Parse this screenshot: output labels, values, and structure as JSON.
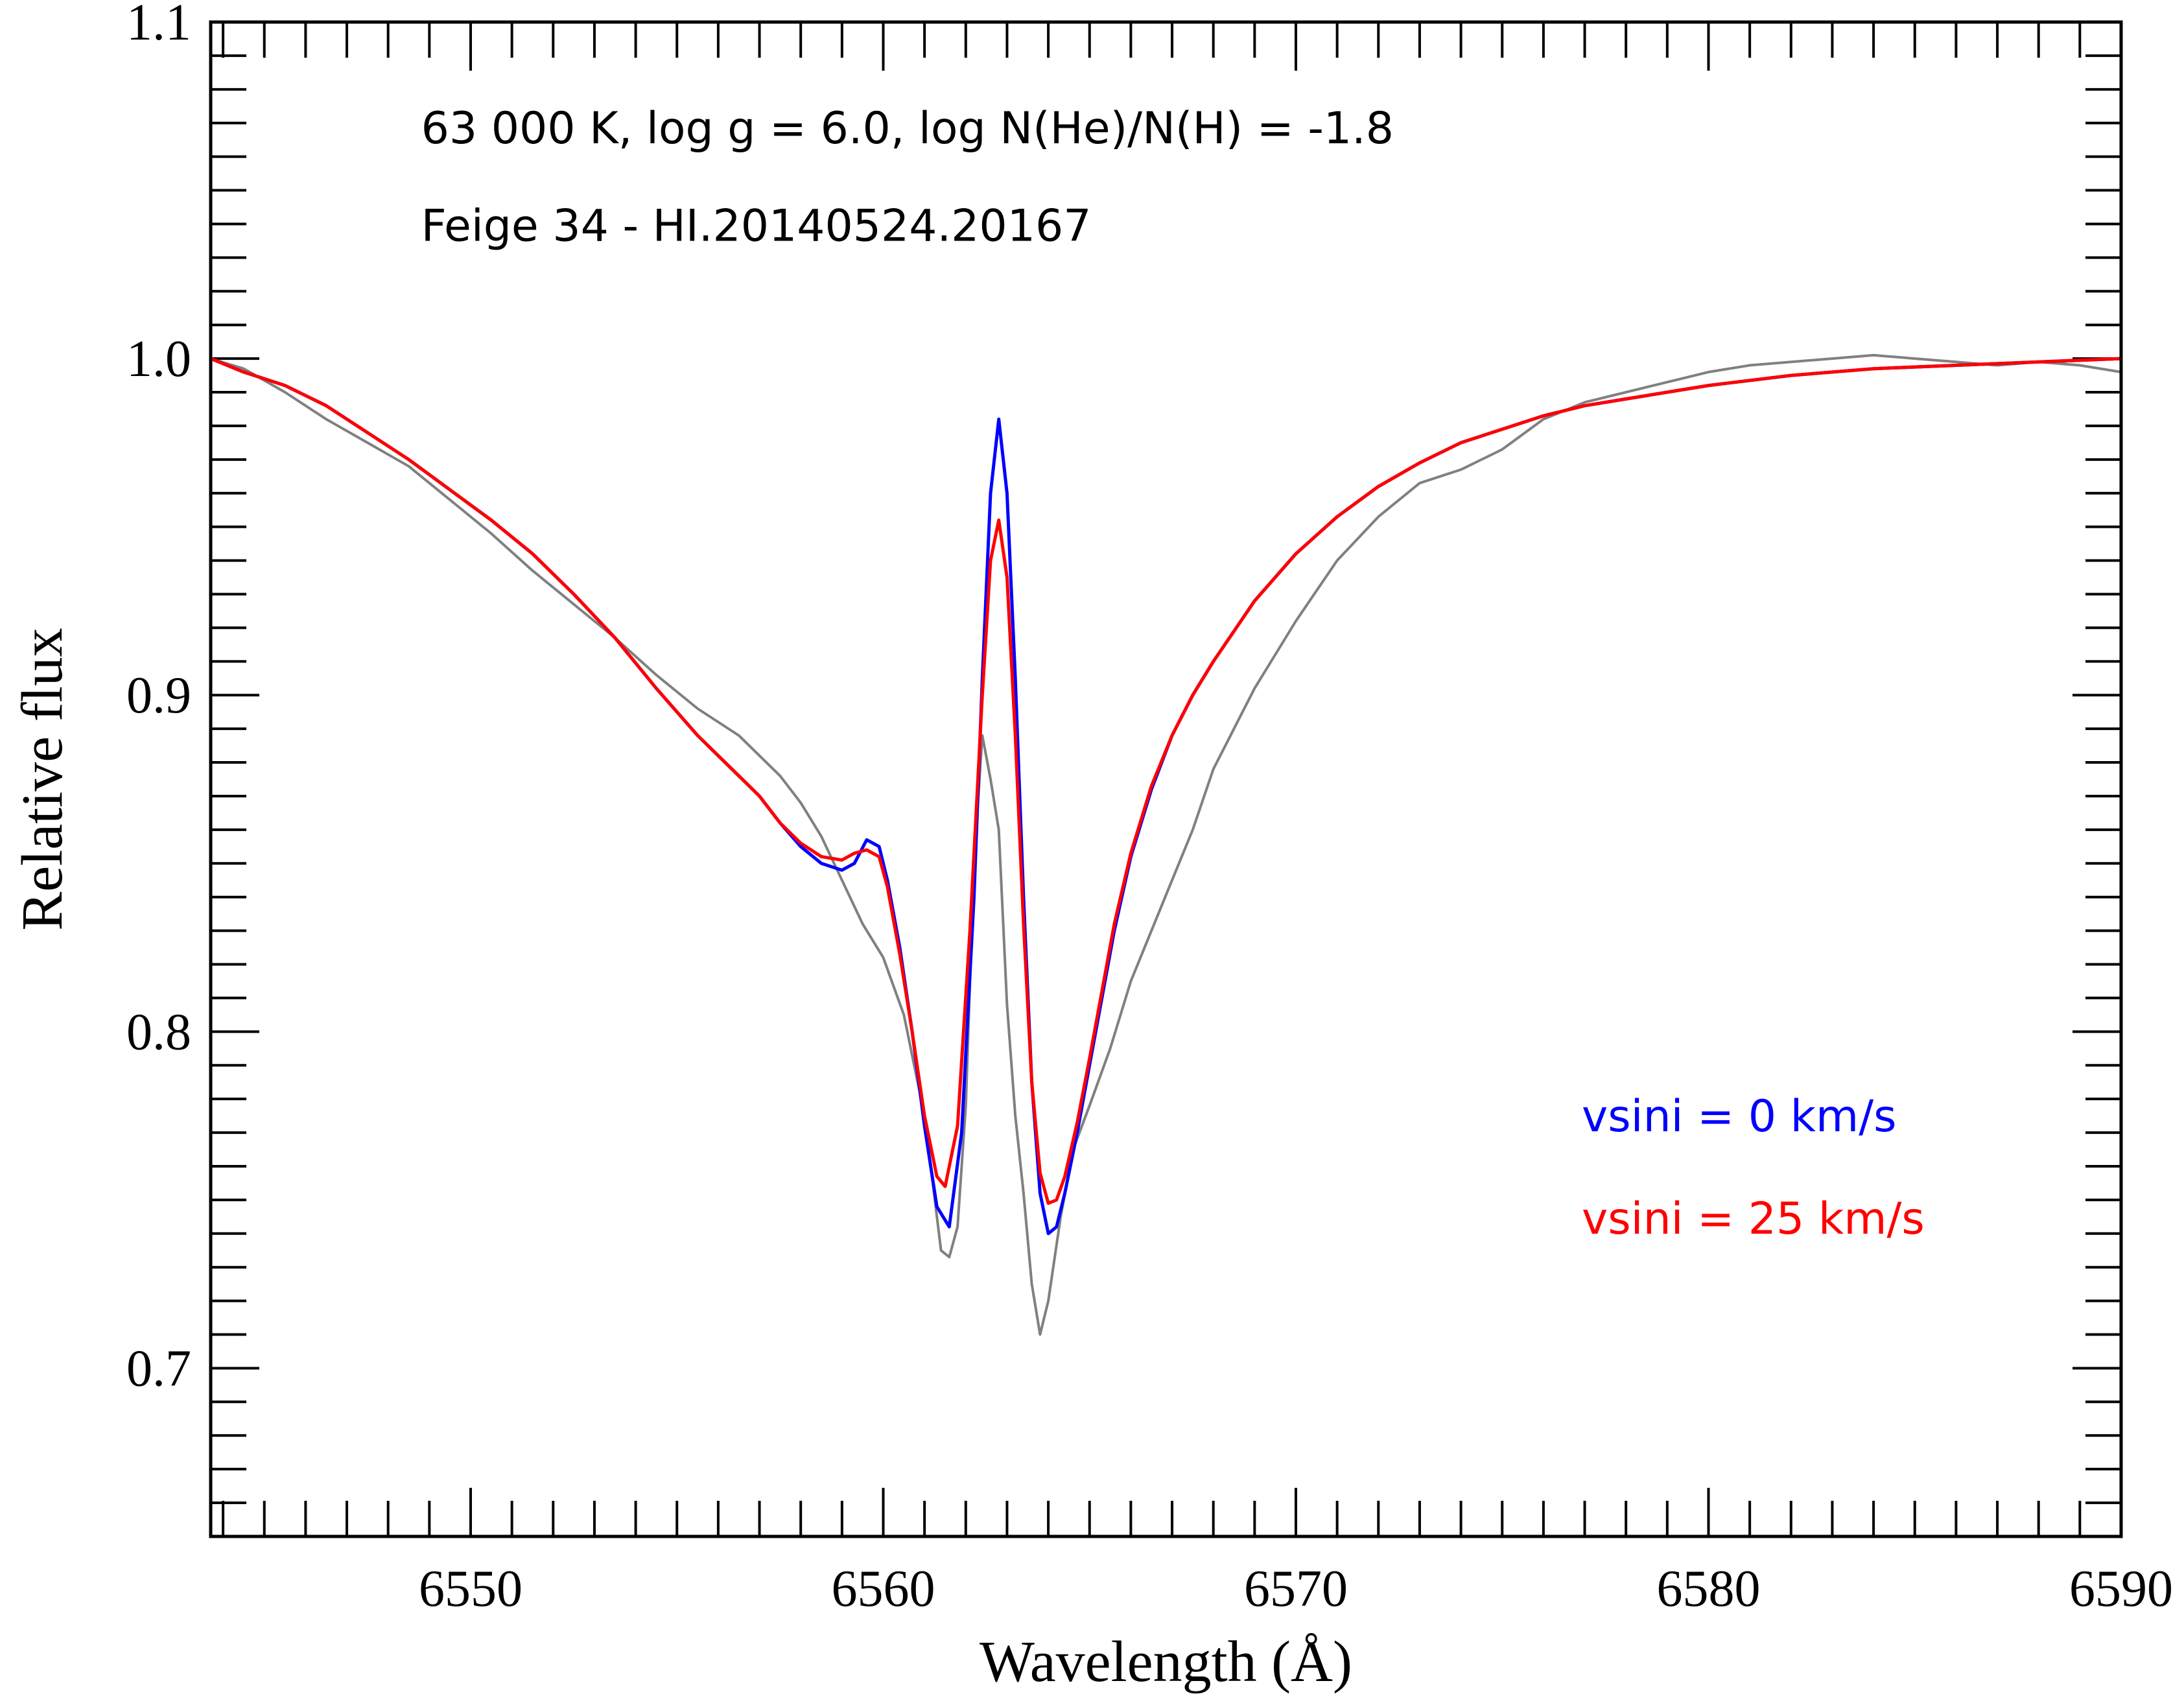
{
  "chart_data": {
    "type": "line",
    "xlabel": "Wavelength (Å)",
    "ylabel": "Relative flux",
    "xlim": [
      6543.7,
      6590
    ],
    "ylim": [
      0.65,
      1.1
    ],
    "x_ticks": [
      6550,
      6560,
      6570,
      6580,
      6590
    ],
    "x_tick_labels": [
      "6550",
      "6560",
      "6570",
      "6580",
      "6590"
    ],
    "y_ticks": [
      0.7,
      0.8,
      0.9,
      1.0,
      1.1
    ],
    "y_tick_labels": [
      "0.7",
      "0.8",
      "0.9",
      "1.0",
      "1.1"
    ],
    "x_minor_step": 1,
    "y_minor_step": 0.01,
    "grid": false,
    "annotations": [
      {
        "text": "63 000 K, log g = 6.0, log N(He)/N(H) = -1.8",
        "x": 6548.8,
        "y": 1.064
      },
      {
        "text": "Feige 34 - HI.20140524.20167",
        "x": 6548.8,
        "y": 1.035
      }
    ],
    "legend": {
      "placement": "lower-right",
      "entries": [
        {
          "text": "vsini = 0 km/s",
          "color": "#0000ff"
        },
        {
          "text": "vsini = 25 km/s",
          "color": "#ff0000"
        }
      ]
    },
    "series": [
      {
        "color": "#808080",
        "style": "noisy observed spectrum",
        "x": [
          6543.7,
          6544.5,
          6545.5,
          6546.5,
          6547.5,
          6548.5,
          6549.5,
          6550.5,
          6551.5,
          6552.5,
          6553.5,
          6554.5,
          6555.5,
          6556.5,
          6557.5,
          6558.0,
          6558.5,
          6559.0,
          6559.5,
          6560.0,
          6560.5,
          6561.0,
          6561.2,
          6561.4,
          6561.6,
          6561.8,
          6562.0,
          6562.2,
          6562.4,
          6562.6,
          6562.8,
          6563.0,
          6563.2,
          6563.4,
          6563.6,
          6563.8,
          6564.0,
          6564.3,
          6564.6,
          6565.0,
          6565.5,
          6566.0,
          6566.5,
          6567.0,
          6567.5,
          6568.0,
          6569.0,
          6570.0,
          6571.0,
          6572.0,
          6573.0,
          6574.0,
          6575.0,
          6576.0,
          6577.0,
          6578.0,
          6579.0,
          6580.0,
          6581.0,
          6582.0,
          6583.0,
          6584.0,
          6585.0,
          6586.0,
          6587.0,
          6588.0,
          6589.0,
          6590.0
        ],
        "y": [
          1.0,
          0.997,
          0.99,
          0.982,
          0.975,
          0.968,
          0.958,
          0.948,
          0.937,
          0.927,
          0.917,
          0.906,
          0.896,
          0.888,
          0.876,
          0.868,
          0.858,
          0.845,
          0.832,
          0.822,
          0.805,
          0.775,
          0.755,
          0.735,
          0.733,
          0.742,
          0.778,
          0.85,
          0.888,
          0.875,
          0.86,
          0.808,
          0.775,
          0.752,
          0.725,
          0.71,
          0.72,
          0.745,
          0.765,
          0.778,
          0.795,
          0.815,
          0.83,
          0.845,
          0.86,
          0.878,
          0.902,
          0.922,
          0.94,
          0.953,
          0.963,
          0.967,
          0.973,
          0.982,
          0.987,
          0.99,
          0.993,
          0.996,
          0.998,
          0.999,
          1.0,
          1.001,
          1.0,
          0.999,
          0.998,
          0.999,
          0.998,
          0.996
        ]
      },
      {
        "color": "#0000ff",
        "style": "model, vsini = 0 km/s",
        "x": [
          6543.7,
          6544.5,
          6545.5,
          6546.5,
          6547.5,
          6548.5,
          6549.5,
          6550.5,
          6551.5,
          6552.5,
          6553.5,
          6554.5,
          6555.5,
          6556.5,
          6557.0,
          6557.5,
          6558.0,
          6558.5,
          6559.0,
          6559.3,
          6559.6,
          6559.9,
          6560.1,
          6560.4,
          6560.7,
          6561.0,
          6561.3,
          6561.6,
          6561.9,
          6562.2,
          6562.4,
          6562.6,
          6562.8,
          6563.0,
          6563.2,
          6563.4,
          6563.6,
          6563.8,
          6564.0,
          6564.2,
          6564.4,
          6564.7,
          6565.0,
          6565.3,
          6565.6,
          6566.0,
          6566.5,
          6567.0,
          6567.5,
          6568.0,
          6569.0,
          6570.0,
          6571.0,
          6572.0,
          6573.0,
          6574.0,
          6575.0,
          6576.0,
          6577.0,
          6578.0,
          6579.0,
          6580.0,
          6582.0,
          6584.0,
          6586.0,
          6588.0,
          6590.0
        ],
        "y": [
          1.0,
          0.996,
          0.992,
          0.986,
          0.978,
          0.97,
          0.961,
          0.952,
          0.942,
          0.93,
          0.917,
          0.902,
          0.888,
          0.876,
          0.87,
          0.862,
          0.855,
          0.85,
          0.848,
          0.85,
          0.857,
          0.855,
          0.845,
          0.825,
          0.8,
          0.772,
          0.748,
          0.742,
          0.77,
          0.84,
          0.905,
          0.96,
          0.982,
          0.96,
          0.905,
          0.84,
          0.785,
          0.752,
          0.74,
          0.742,
          0.752,
          0.77,
          0.79,
          0.81,
          0.83,
          0.852,
          0.872,
          0.888,
          0.9,
          0.91,
          0.928,
          0.942,
          0.953,
          0.962,
          0.969,
          0.975,
          0.979,
          0.983,
          0.986,
          0.988,
          0.99,
          0.992,
          0.995,
          0.997,
          0.998,
          0.999,
          1.0
        ]
      },
      {
        "color": "#ff0000",
        "style": "model, vsini = 25 km/s",
        "x": [
          6543.7,
          6544.5,
          6545.5,
          6546.5,
          6547.5,
          6548.5,
          6549.5,
          6550.5,
          6551.5,
          6552.5,
          6553.5,
          6554.5,
          6555.5,
          6556.5,
          6557.0,
          6557.5,
          6558.0,
          6558.5,
          6559.0,
          6559.3,
          6559.6,
          6559.9,
          6560.1,
          6560.4,
          6560.7,
          6561.0,
          6561.3,
          6561.5,
          6561.8,
          6562.1,
          6562.4,
          6562.6,
          6562.8,
          6563.0,
          6563.2,
          6563.4,
          6563.6,
          6563.8,
          6564.0,
          6564.2,
          6564.4,
          6564.7,
          6565.0,
          6565.3,
          6565.6,
          6566.0,
          6566.5,
          6567.0,
          6567.5,
          6568.0,
          6569.0,
          6570.0,
          6571.0,
          6572.0,
          6573.0,
          6574.0,
          6575.0,
          6576.0,
          6577.0,
          6578.0,
          6579.0,
          6580.0,
          6582.0,
          6584.0,
          6586.0,
          6588.0,
          6590.0
        ],
        "y": [
          1.0,
          0.996,
          0.992,
          0.986,
          0.978,
          0.97,
          0.961,
          0.952,
          0.942,
          0.93,
          0.917,
          0.902,
          0.888,
          0.876,
          0.87,
          0.862,
          0.856,
          0.852,
          0.851,
          0.853,
          0.854,
          0.852,
          0.843,
          0.823,
          0.8,
          0.775,
          0.757,
          0.754,
          0.772,
          0.83,
          0.9,
          0.94,
          0.952,
          0.935,
          0.888,
          0.832,
          0.785,
          0.758,
          0.749,
          0.75,
          0.757,
          0.773,
          0.792,
          0.812,
          0.832,
          0.853,
          0.873,
          0.888,
          0.9,
          0.91,
          0.928,
          0.942,
          0.953,
          0.962,
          0.969,
          0.975,
          0.979,
          0.983,
          0.986,
          0.988,
          0.99,
          0.992,
          0.995,
          0.997,
          0.998,
          0.999,
          1.0
        ]
      }
    ]
  }
}
